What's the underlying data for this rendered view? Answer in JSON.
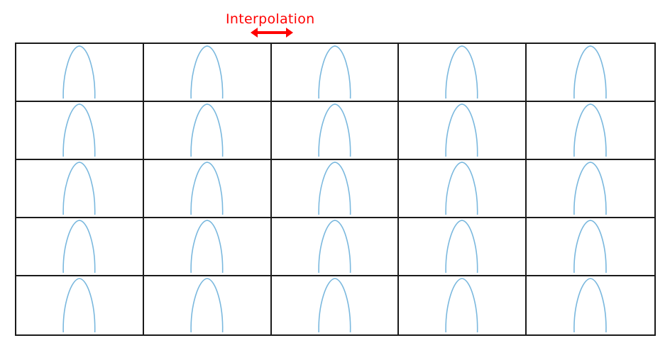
{
  "annotation": {
    "text": "Interpolation",
    "color": "#ff0000"
  },
  "grid": {
    "rows": 5,
    "cols": 5,
    "curve_color": "#7ab8de",
    "border_color": "#1a1a1a"
  }
}
